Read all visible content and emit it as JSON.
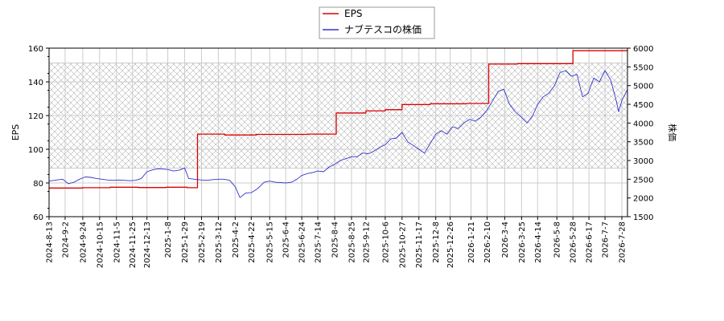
{
  "chart_data": {
    "type": "line",
    "legend": {
      "placement": "top-center",
      "items": [
        {
          "label": "EPS",
          "color": "#dd0000"
        },
        {
          "label": "ナブテスコの株価",
          "color": "#3333cc"
        }
      ]
    },
    "y_left": {
      "label": "EPS",
      "lim": [
        60,
        160
      ],
      "ticks": [
        "60",
        "80",
        "100",
        "120",
        "140",
        "160"
      ]
    },
    "y_right": {
      "label": "株価",
      "lim": [
        1500,
        6000
      ],
      "ticks": [
        "1500",
        "2000",
        "2500",
        "3000",
        "3500",
        "4000",
        "4500",
        "5000",
        "5500",
        "6000"
      ]
    },
    "x": {
      "start": "2024-08-13",
      "end": "2026-08-04",
      "tick_dates": [
        "2024-08-13",
        "2024-09-02",
        "2024-09-24",
        "2024-10-15",
        "2024-11-05",
        "2024-11-25",
        "2024-12-13",
        "2025-01-08",
        "2025-01-29",
        "2025-02-19",
        "2025-03-12",
        "2025-04-02",
        "2025-04-22",
        "2025-05-15",
        "2025-06-04",
        "2025-06-24",
        "2025-07-14",
        "2025-08-04",
        "2025-08-25",
        "2025-09-12",
        "2025-10-06",
        "2025-10-27",
        "2025-11-17",
        "2025-12-08",
        "2025-12-26",
        "2026-01-21",
        "2026-02-10",
        "2026-03-04",
        "2026-03-25",
        "2026-04-14",
        "2026-05-08",
        "2026-05-28",
        "2026-06-17",
        "2026-07-07",
        "2026-07-28"
      ],
      "tick_labels": [
        "2024-8-13",
        "2024-9-2",
        "2024-9-24",
        "2024-10-15",
        "2024-11-5",
        "2024-11-25",
        "2024-12-13",
        "2025-1-8",
        "2025-1-29",
        "2025-2-19",
        "2025-3-12",
        "2025-4-2",
        "2025-4-22",
        "2025-5-15",
        "2025-6-4",
        "2025-6-24",
        "2025-7-14",
        "2025-8-4",
        "2025-8-25",
        "2025-9-12",
        "2025-10-6",
        "2025-10-27",
        "2025-11-17",
        "2025-12-8",
        "2025-12-26",
        "2026-1-21",
        "2026-2-10",
        "2026-3-4",
        "2026-3-25",
        "2026-4-14",
        "2026-5-8",
        "2026-5-28",
        "2026-6-17",
        "2026-7-7",
        "2026-7-28"
      ]
    },
    "grid": true,
    "hatched_band": {
      "axis": "right",
      "range": [
        2800,
        5600
      ]
    },
    "series": [
      {
        "name": "EPS",
        "axis": "left",
        "color": "#dd0000",
        "step": true,
        "points": [
          [
            "2024-08-13",
            77.0
          ],
          [
            "2024-09-24",
            77.2
          ],
          [
            "2024-10-28",
            77.5
          ],
          [
            "2024-12-02",
            77.3
          ],
          [
            "2025-01-06",
            77.5
          ],
          [
            "2025-02-01",
            77.2
          ],
          [
            "2025-02-14",
            109.0
          ],
          [
            "2025-03-20",
            108.5
          ],
          [
            "2025-04-28",
            108.8
          ],
          [
            "2025-07-01",
            109.0
          ],
          [
            "2025-08-06",
            121.5
          ],
          [
            "2025-09-12",
            122.8
          ],
          [
            "2025-10-06",
            123.5
          ],
          [
            "2025-10-27",
            126.5
          ],
          [
            "2025-12-01",
            127.0
          ],
          [
            "2026-01-15",
            127.2
          ],
          [
            "2026-02-12",
            150.5
          ],
          [
            "2026-03-20",
            150.8
          ],
          [
            "2026-04-20",
            150.8
          ],
          [
            "2026-05-28",
            158.5
          ],
          [
            "2026-07-20",
            158.5
          ],
          [
            "2026-08-04",
            159.0
          ]
        ]
      },
      {
        "name": "ナブテスコの株価",
        "axis": "right",
        "color": "#3333cc",
        "step": false,
        "points": [
          [
            "2024-08-13",
            2450
          ],
          [
            "2024-08-22",
            2480
          ],
          [
            "2024-08-30",
            2500
          ],
          [
            "2024-09-06",
            2380
          ],
          [
            "2024-09-13",
            2420
          ],
          [
            "2024-09-20",
            2500
          ],
          [
            "2024-09-27",
            2560
          ],
          [
            "2024-10-04",
            2550
          ],
          [
            "2024-10-11",
            2520
          ],
          [
            "2024-10-18",
            2500
          ],
          [
            "2024-10-25",
            2480
          ],
          [
            "2024-11-01",
            2470
          ],
          [
            "2024-11-08",
            2480
          ],
          [
            "2024-11-15",
            2470
          ],
          [
            "2024-11-22",
            2460
          ],
          [
            "2024-11-29",
            2470
          ],
          [
            "2024-12-06",
            2520
          ],
          [
            "2024-12-13",
            2700
          ],
          [
            "2024-12-20",
            2750
          ],
          [
            "2024-12-27",
            2780
          ],
          [
            "2025-01-08",
            2760
          ],
          [
            "2025-01-15",
            2720
          ],
          [
            "2025-01-22",
            2740
          ],
          [
            "2025-01-29",
            2800
          ],
          [
            "2025-02-03",
            2520
          ],
          [
            "2025-02-10",
            2500
          ],
          [
            "2025-02-19",
            2480
          ],
          [
            "2025-02-26",
            2470
          ],
          [
            "2025-03-05",
            2490
          ],
          [
            "2025-03-12",
            2500
          ],
          [
            "2025-03-19",
            2500
          ],
          [
            "2025-03-26",
            2470
          ],
          [
            "2025-04-02",
            2300
          ],
          [
            "2025-04-08",
            2010
          ],
          [
            "2025-04-15",
            2130
          ],
          [
            "2025-04-22",
            2140
          ],
          [
            "2025-04-30",
            2250
          ],
          [
            "2025-05-08",
            2420
          ],
          [
            "2025-05-15",
            2450
          ],
          [
            "2025-05-22",
            2420
          ],
          [
            "2025-05-29",
            2410
          ],
          [
            "2025-06-04",
            2400
          ],
          [
            "2025-06-11",
            2420
          ],
          [
            "2025-06-18",
            2500
          ],
          [
            "2025-06-24",
            2600
          ],
          [
            "2025-07-01",
            2650
          ],
          [
            "2025-07-08",
            2680
          ],
          [
            "2025-07-14",
            2720
          ],
          [
            "2025-07-21",
            2700
          ],
          [
            "2025-07-28",
            2820
          ],
          [
            "2025-08-04",
            2900
          ],
          [
            "2025-08-11",
            3000
          ],
          [
            "2025-08-18",
            3050
          ],
          [
            "2025-08-25",
            3100
          ],
          [
            "2025-09-01",
            3100
          ],
          [
            "2025-09-08",
            3200
          ],
          [
            "2025-09-15",
            3180
          ],
          [
            "2025-09-22",
            3250
          ],
          [
            "2025-09-29",
            3350
          ],
          [
            "2025-10-06",
            3420
          ],
          [
            "2025-10-13",
            3580
          ],
          [
            "2025-10-20",
            3600
          ],
          [
            "2025-10-27",
            3750
          ],
          [
            "2025-11-03",
            3500
          ],
          [
            "2025-11-10",
            3400
          ],
          [
            "2025-11-17",
            3300
          ],
          [
            "2025-11-24",
            3200
          ],
          [
            "2025-12-01",
            3450
          ],
          [
            "2025-12-08",
            3700
          ],
          [
            "2025-12-15",
            3800
          ],
          [
            "2025-12-22",
            3700
          ],
          [
            "2025-12-29",
            3900
          ],
          [
            "2026-01-05",
            3850
          ],
          [
            "2026-01-12",
            4000
          ],
          [
            "2026-01-19",
            4100
          ],
          [
            "2026-01-26",
            4050
          ],
          [
            "2026-02-02",
            4150
          ],
          [
            "2026-02-10",
            4350
          ],
          [
            "2026-02-17",
            4600
          ],
          [
            "2026-02-24",
            4850
          ],
          [
            "2026-03-03",
            4900
          ],
          [
            "2026-03-10",
            4500
          ],
          [
            "2026-03-17",
            4300
          ],
          [
            "2026-03-25",
            4150
          ],
          [
            "2026-04-01",
            4000
          ],
          [
            "2026-04-08",
            4200
          ],
          [
            "2026-04-14",
            4500
          ],
          [
            "2026-04-21",
            4700
          ],
          [
            "2026-04-28",
            4800
          ],
          [
            "2026-05-05",
            5000
          ],
          [
            "2026-05-12",
            5350
          ],
          [
            "2026-05-19",
            5400
          ],
          [
            "2026-05-26",
            5250
          ],
          [
            "2026-06-02",
            5300
          ],
          [
            "2026-06-09",
            4700
          ],
          [
            "2026-06-16",
            4800
          ],
          [
            "2026-06-23",
            5200
          ],
          [
            "2026-06-30",
            5100
          ],
          [
            "2026-07-07",
            5400
          ],
          [
            "2026-07-14",
            5150
          ],
          [
            "2026-07-21",
            4600
          ],
          [
            "2026-07-24",
            4300
          ],
          [
            "2026-07-28",
            4600
          ],
          [
            "2026-08-04",
            4900
          ]
        ]
      }
    ]
  }
}
